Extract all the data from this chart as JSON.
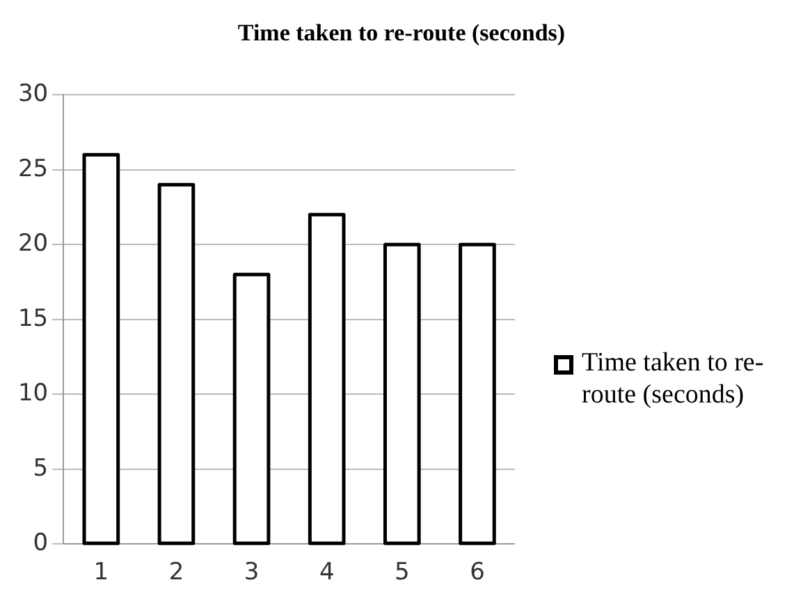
{
  "chart_data": {
    "type": "bar",
    "title": "Time taken to re-route (seconds)",
    "categories": [
      "1",
      "2",
      "3",
      "4",
      "5",
      "6"
    ],
    "series": [
      {
        "name": "Time taken to re-route (seconds)",
        "color": "#ffffff",
        "values": [
          26,
          24,
          18,
          22,
          20,
          20
        ]
      }
    ],
    "ylim": [
      0,
      30
    ],
    "yticks": [
      0,
      5,
      10,
      15,
      20,
      25,
      30
    ],
    "grid": "y",
    "legend": "right"
  }
}
